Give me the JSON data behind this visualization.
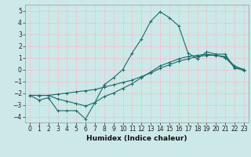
{
  "title": "",
  "xlabel": "Humidex (Indice chaleur)",
  "xlim": [
    -0.5,
    23.5
  ],
  "ylim": [
    -4.5,
    5.5
  ],
  "xticks": [
    0,
    1,
    2,
    3,
    4,
    5,
    6,
    7,
    8,
    9,
    10,
    11,
    12,
    13,
    14,
    15,
    16,
    17,
    18,
    19,
    20,
    21,
    22,
    23
  ],
  "yticks": [
    -4,
    -3,
    -2,
    -1,
    0,
    1,
    2,
    3,
    4,
    5
  ],
  "background_color": "#cce8e8",
  "grid_color": "#e8c8c8",
  "line_color": "#1a6b6b",
  "line1_x": [
    0,
    1,
    2,
    3,
    4,
    5,
    6,
    7,
    8,
    9,
    10,
    11,
    12,
    13,
    14,
    15,
    16,
    17,
    18,
    19,
    20,
    21,
    22,
    23
  ],
  "line1_y": [
    -2.2,
    -2.6,
    -2.4,
    -3.5,
    -3.5,
    -3.5,
    -4.2,
    -2.8,
    -1.3,
    -0.7,
    0.0,
    1.4,
    2.6,
    4.1,
    4.9,
    4.4,
    3.7,
    1.4,
    0.9,
    1.5,
    1.3,
    1.3,
    0.1,
    0.0
  ],
  "line2_x": [
    0,
    1,
    2,
    3,
    4,
    5,
    6,
    7,
    8,
    9,
    10,
    11,
    12,
    13,
    14,
    15,
    16,
    17,
    18,
    19,
    20,
    21,
    22,
    23
  ],
  "line2_y": [
    -2.2,
    -2.2,
    -2.2,
    -2.1,
    -2.0,
    -1.9,
    -1.8,
    -1.7,
    -1.5,
    -1.3,
    -1.1,
    -0.9,
    -0.6,
    -0.3,
    0.1,
    0.4,
    0.7,
    0.9,
    1.1,
    1.2,
    1.2,
    1.1,
    0.3,
    0.0
  ],
  "line3_x": [
    0,
    1,
    2,
    3,
    4,
    5,
    6,
    7,
    8,
    9,
    10,
    11,
    12,
    13,
    14,
    15,
    16,
    17,
    18,
    19,
    20,
    21,
    22,
    23
  ],
  "line3_y": [
    -2.2,
    -2.2,
    -2.2,
    -2.5,
    -2.7,
    -2.9,
    -3.1,
    -2.8,
    -2.3,
    -2.0,
    -1.6,
    -1.2,
    -0.7,
    -0.2,
    0.3,
    0.6,
    0.9,
    1.1,
    1.2,
    1.3,
    1.2,
    1.0,
    0.2,
    -0.1
  ],
  "tick_fontsize": 5.5,
  "xlabel_fontsize": 6.5,
  "marker_size": 3,
  "linewidth": 0.8
}
